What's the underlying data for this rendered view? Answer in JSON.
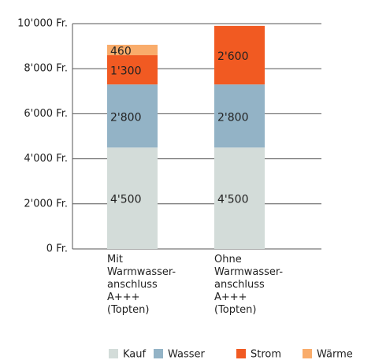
{
  "chart_data": {
    "type": "stacked_bar",
    "categories": [
      "Mit\nWarmwasser-\nanschluss\nA+++\n(Topten)",
      "Ohne\nWarmwasser-\nanschluss\nA+++\n(Topten)"
    ],
    "series": [
      {
        "name": "Kauf",
        "color": "#d3dcd9",
        "values": [
          4500,
          4500
        ],
        "value_labels": [
          "4'500",
          "4'500"
        ]
      },
      {
        "name": "Wasser",
        "color": "#93b3c6",
        "values": [
          2800,
          2800
        ],
        "value_labels": [
          "2'800",
          "2'800"
        ]
      },
      {
        "name": "Strom",
        "color": "#f15a22",
        "values": [
          1300,
          2600
        ],
        "value_labels": [
          "1'300",
          "2'600"
        ]
      },
      {
        "name": "Wärme",
        "color": "#f9ac6b",
        "values": [
          460,
          null
        ],
        "value_labels": [
          "460",
          null
        ]
      }
    ],
    "ylim": [
      0,
      10000
    ],
    "yticks": [
      {
        "value": 0,
        "label": "0 Fr."
      },
      {
        "value": 2000,
        "label": "2'000 Fr."
      },
      {
        "value": 4000,
        "label": "4'000 Fr."
      },
      {
        "value": 6000,
        "label": "6'000 Fr."
      },
      {
        "value": 8000,
        "label": "8'000 Fr."
      },
      {
        "value": 10000,
        "label": "10'000 Fr."
      }
    ],
    "grid": true
  }
}
